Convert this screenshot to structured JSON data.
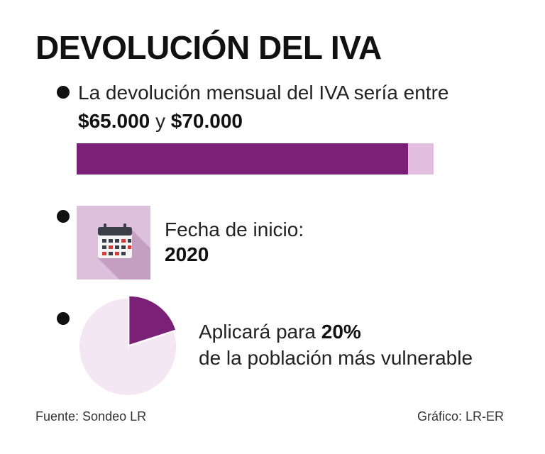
{
  "title": "DEVOLUCIÓN DEL IVA",
  "item1": {
    "text_line1": "La devolución mensual del IVA sería entre",
    "amount_low": "$65.000",
    "connector": " y ",
    "amount_high": "$70.000"
  },
  "item2": {
    "label": "Fecha de inicio:",
    "value": "2020",
    "icon": "calendar-icon"
  },
  "item3": {
    "text_prefix": "Aplicará para ",
    "percent": "20%",
    "text_line2": "de la población más vulnerable"
  },
  "footer": {
    "source": "Fuente: Sondeo LR",
    "credit": "Gráfico: LR-ER"
  },
  "colors": {
    "accent": "#7b2077",
    "accent_light": "#e2bfdf",
    "pie_rest": "#f4e6f3",
    "calendar_bg": "#ddc0dc"
  },
  "chart_data": [
    {
      "type": "bar",
      "title": "",
      "categories": [
        "$65.000",
        "$70.000"
      ],
      "values": [
        65000,
        70000
      ],
      "xlabel": "",
      "ylabel": "",
      "ylim": [
        0,
        70000
      ]
    },
    {
      "type": "pie",
      "title": "",
      "labels": [
        "",
        ""
      ],
      "values": [
        20,
        80
      ]
    }
  ]
}
